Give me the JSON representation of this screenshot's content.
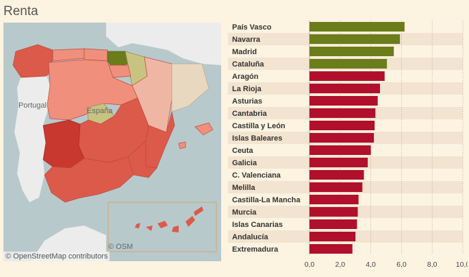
{
  "title": "Renta",
  "map": {
    "country_label": "España",
    "portugal_label": "Portugal",
    "osm_label": "© OSM",
    "attribution": "© OpenStreetMap contributors",
    "colors": {
      "sea": "#b8c9cc",
      "land": "#ececec",
      "top": "#6b7d1a",
      "mid_high": "#c9c382",
      "beige": "#e8d8c0",
      "pink_light": "#f0b6a4",
      "salmon": "#ef8f7c",
      "red_mid": "#dc5a4a",
      "red_dark": "#c9382f"
    }
  },
  "chart_data": {
    "type": "bar",
    "orientation": "horizontal",
    "categories": [
      "País Vasco",
      "Navarra",
      "Madrid",
      "Cataluña",
      "Aragón",
      "La Rioja",
      "Asturias",
      "Cantabria",
      "Castilla y León",
      "Islas Baleares",
      "Ceuta",
      "Galicia",
      "C. Valenciana",
      "Melilla",
      "Castilla-La Mancha",
      "Murcia",
      "Islas Canarias",
      "Andalucía",
      "Extremadura"
    ],
    "values": [
      6.2,
      5.9,
      5.5,
      5.05,
      4.9,
      4.6,
      4.45,
      4.3,
      4.25,
      4.2,
      4.0,
      3.8,
      3.55,
      3.45,
      3.2,
      3.15,
      3.1,
      3.0,
      2.8
    ],
    "highlight_count": 4,
    "colors": {
      "highlight": "#6b7d1a",
      "normal": "#b0102b",
      "band": "#f2e4d0"
    },
    "xlim": [
      0,
      10
    ],
    "ticks": [
      "0,0",
      "2,0",
      "4,0",
      "6,0",
      "8,0",
      "10,0"
    ],
    "tick_values": [
      0,
      2,
      4,
      6,
      8,
      10
    ],
    "grid": true
  }
}
